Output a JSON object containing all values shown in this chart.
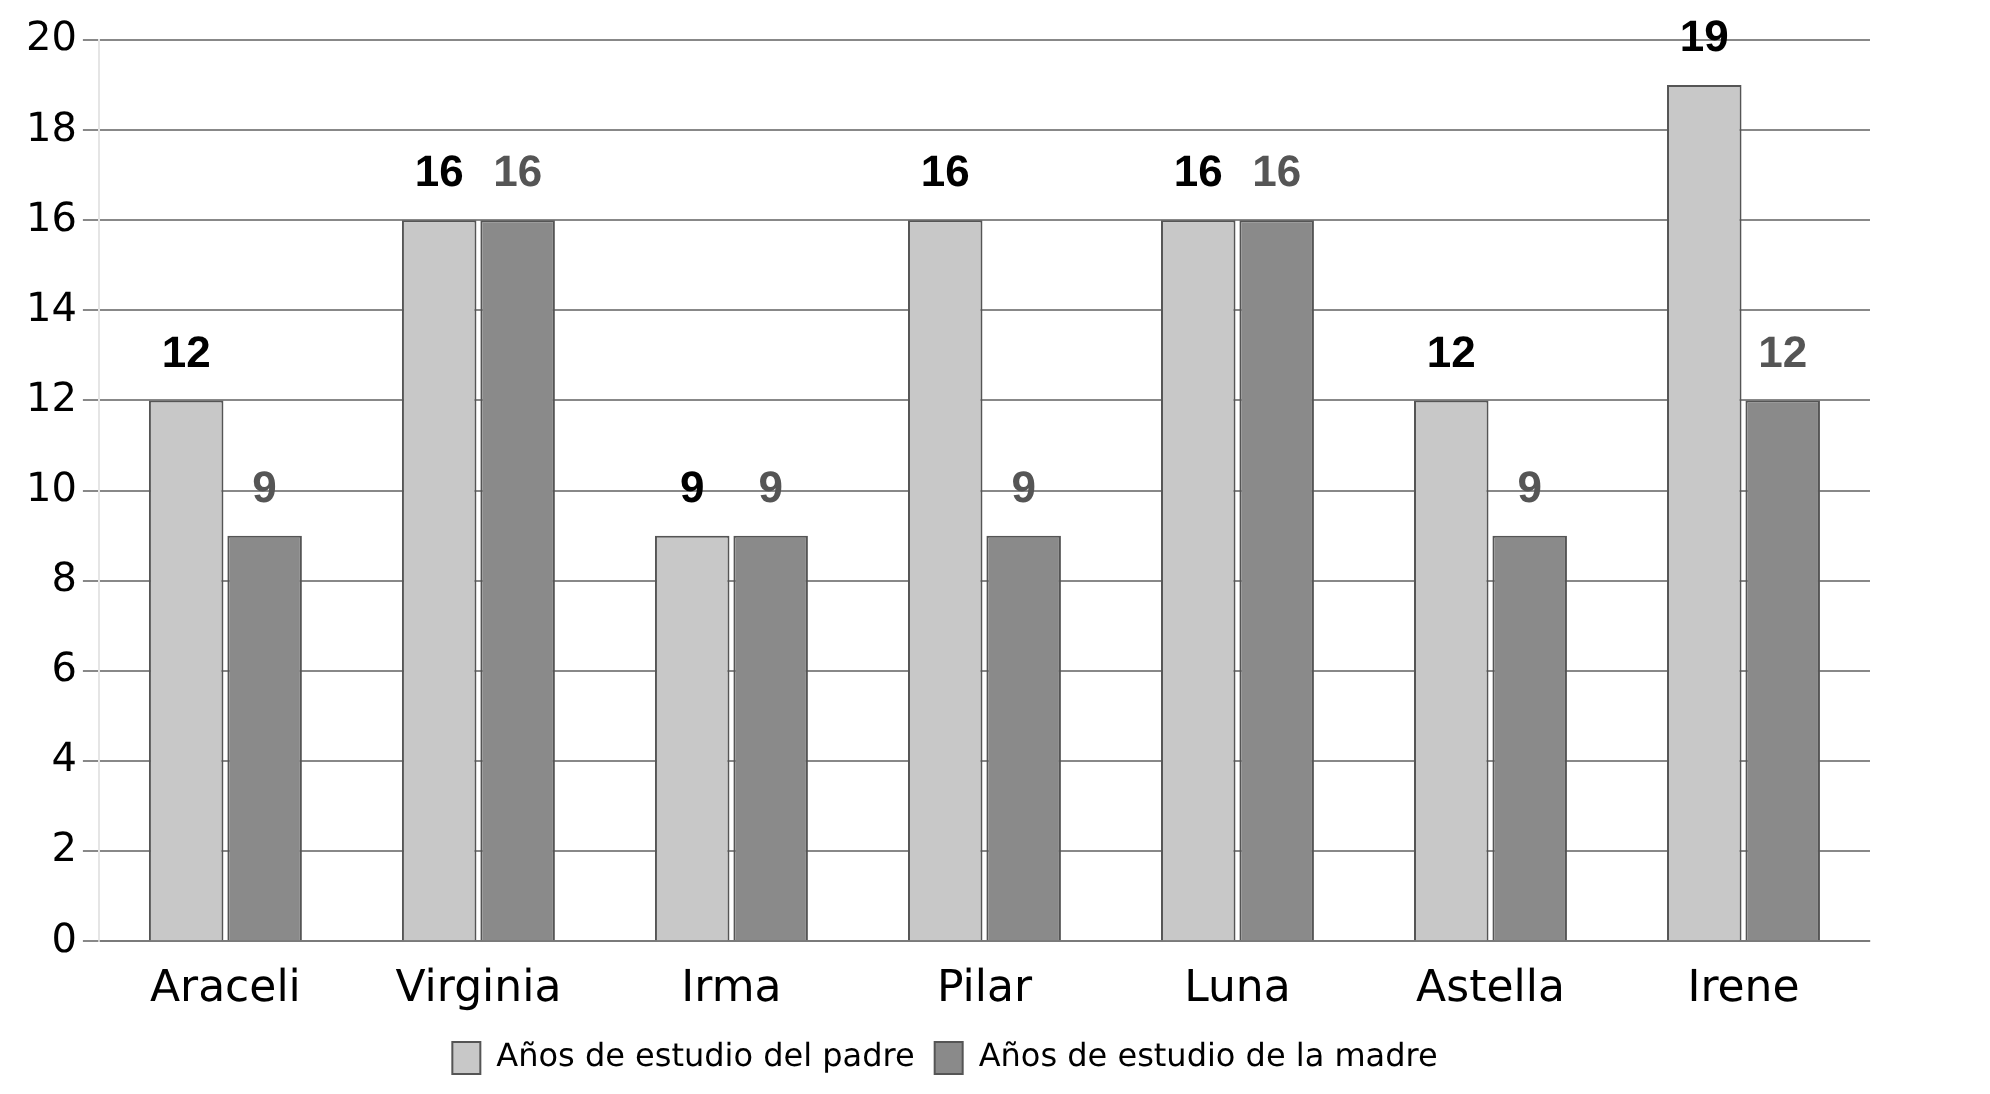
{
  "chart_data": {
    "type": "bar",
    "categories": [
      "Araceli",
      "Virginia",
      "Irma",
      "Pilar",
      "Luna",
      "Astella",
      "Irene"
    ],
    "series": [
      {
        "name": "Años de estudio del padre",
        "color": "#c8c8c8",
        "values": [
          12,
          16,
          9,
          16,
          16,
          12,
          19
        ]
      },
      {
        "name": "Años de estudio de la madre",
        "color": "#8a8a8a",
        "values": [
          9,
          16,
          9,
          9,
          16,
          9,
          12
        ]
      }
    ],
    "ylim": [
      0,
      20
    ],
    "yticks": [
      0,
      2,
      4,
      6,
      8,
      10,
      12,
      14,
      16,
      18,
      20
    ],
    "grid": "y",
    "legend": "bottom",
    "data_labels": true
  }
}
